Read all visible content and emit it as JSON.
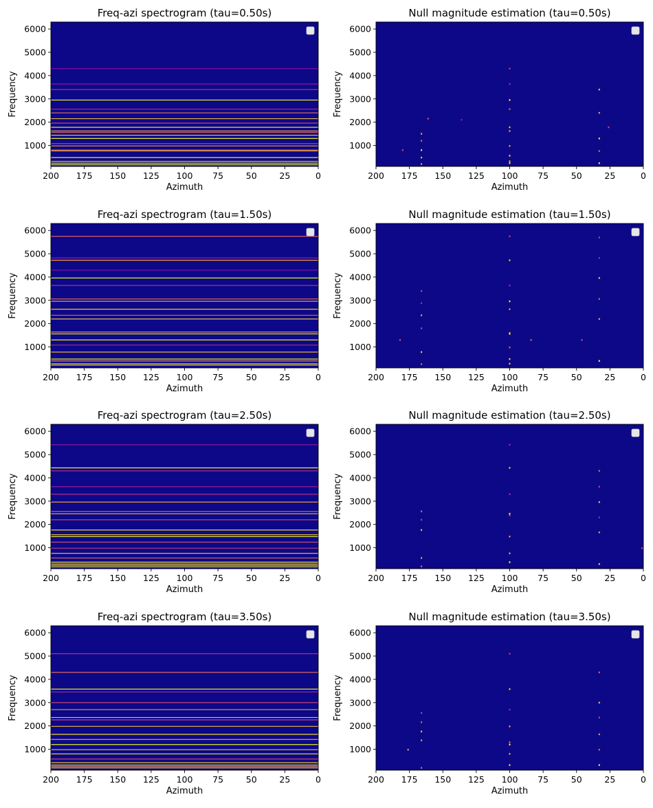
{
  "chart_data": [
    {
      "type": "heatmap",
      "title": "Freq-azi spectrogram (tau=0.50s)",
      "xlabel": "Azimuth",
      "ylabel": "Frequency",
      "xlim": [
        200,
        0
      ],
      "ylim": [
        100,
        6300
      ],
      "xticks": [
        200,
        175,
        150,
        125,
        100,
        75,
        50,
        25,
        0
      ],
      "yticks": [
        1000,
        2000,
        3000,
        4000,
        5000,
        6000
      ],
      "colormap": "plasma",
      "background": "#0d0887",
      "legend": "top-right",
      "legend_entries": [],
      "lines": [
        {
          "f": 4300,
          "c": "#8e0ca5"
        },
        {
          "f": 3640,
          "c": "#a01a9c"
        },
        {
          "f": 3400,
          "c": "#b52f8c"
        },
        {
          "f": 2950,
          "c": "#f0f921"
        },
        {
          "f": 2560,
          "c": "#b5348b"
        },
        {
          "f": 2400,
          "c": "#e36a5d"
        },
        {
          "f": 2150,
          "c": "#f7c13a"
        },
        {
          "f": 1960,
          "c": "#cc4778"
        },
        {
          "f": 1780,
          "c": "#f9e22c"
        },
        {
          "f": 1620,
          "c": "#fba238"
        },
        {
          "f": 1560,
          "c": "#e16462"
        },
        {
          "f": 1440,
          "c": "#fdca26"
        },
        {
          "f": 1300,
          "c": "#f0f921"
        },
        {
          "f": 1080,
          "c": "#d35171"
        },
        {
          "f": 980,
          "c": "#fca636"
        },
        {
          "f": 800,
          "c": "#fdb42f"
        },
        {
          "f": 760,
          "c": "#e56b5d"
        },
        {
          "f": 480,
          "c": "#f0f921"
        },
        {
          "f": 320,
          "c": "#fdc527"
        },
        {
          "f": 240,
          "c": "#f0f921"
        },
        {
          "f": 170,
          "c": "#f0f921"
        }
      ],
      "spots": []
    },
    {
      "type": "heatmap",
      "title": "Null magnitude estimation (tau=0.50s)",
      "xlabel": "Azimuth",
      "ylabel": "Frequency",
      "xlim": [
        200,
        0
      ],
      "ylim": [
        100,
        6300
      ],
      "xticks": [
        200,
        175,
        150,
        125,
        100,
        75,
        50,
        25,
        0
      ],
      "yticks": [
        1000,
        2000,
        3000,
        4000,
        5000,
        6000
      ],
      "colormap": "plasma",
      "background": "#0d0887",
      "legend": "top-right",
      "legend_entries": [],
      "lines": [],
      "spots": [
        {
          "az": 166,
          "f": 1500,
          "c": "#f9a43a"
        },
        {
          "az": 166,
          "f": 1200,
          "c": "#e56b5d"
        },
        {
          "az": 166,
          "f": 800,
          "c": "#f0f921"
        },
        {
          "az": 166,
          "f": 480,
          "c": "#fdca26"
        },
        {
          "az": 166,
          "f": 200,
          "c": "#f9a43a"
        },
        {
          "az": 180,
          "f": 800,
          "c": "#cc4778"
        },
        {
          "az": 161,
          "f": 2150,
          "c": "#d35171"
        },
        {
          "az": 136,
          "f": 2100,
          "c": "#9c179e"
        },
        {
          "az": 100,
          "f": 4300,
          "c": "#cc4778"
        },
        {
          "az": 100,
          "f": 3640,
          "c": "#b52f8c"
        },
        {
          "az": 100,
          "f": 2950,
          "c": "#f0f921"
        },
        {
          "az": 100,
          "f": 2560,
          "c": "#e36a5d"
        },
        {
          "az": 100,
          "f": 1780,
          "c": "#fdca26"
        },
        {
          "az": 100,
          "f": 1620,
          "c": "#fba238"
        },
        {
          "az": 100,
          "f": 980,
          "c": "#f9a43a"
        },
        {
          "az": 100,
          "f": 560,
          "c": "#f9e22c"
        },
        {
          "az": 100,
          "f": 320,
          "c": "#fdb42f"
        },
        {
          "az": 100,
          "f": 240,
          "c": "#f0f921"
        },
        {
          "az": 33,
          "f": 3400,
          "c": "#fdca26"
        },
        {
          "az": 33,
          "f": 2400,
          "c": "#f9a43a"
        },
        {
          "az": 33,
          "f": 1300,
          "c": "#f0f921"
        },
        {
          "az": 33,
          "f": 760,
          "c": "#e56b5d"
        },
        {
          "az": 33,
          "f": 240,
          "c": "#f0f921"
        },
        {
          "az": 26,
          "f": 1780,
          "c": "#cc4778"
        }
      ]
    },
    {
      "type": "heatmap",
      "title": "Freq-azi spectrogram (tau=1.50s)",
      "xlabel": "Azimuth",
      "ylabel": "Frequency",
      "xlim": [
        200,
        0
      ],
      "ylim": [
        100,
        6300
      ],
      "xticks": [
        200,
        175,
        150,
        125,
        100,
        75,
        50,
        25,
        0
      ],
      "yticks": [
        1000,
        2000,
        3000,
        4000,
        5000,
        6000
      ],
      "colormap": "plasma",
      "background": "#0d0887",
      "legend": "top-right",
      "legend_entries": [],
      "lines": [
        {
          "f": 5750,
          "c": "#e16462"
        },
        {
          "f": 4820,
          "c": "#a01a9c"
        },
        {
          "f": 4720,
          "c": "#f9a43a"
        },
        {
          "f": 4300,
          "c": "#8e0ca5"
        },
        {
          "f": 3960,
          "c": "#f0f921"
        },
        {
          "f": 3640,
          "c": "#b52f8c"
        },
        {
          "f": 3060,
          "c": "#e36a5d"
        },
        {
          "f": 2960,
          "c": "#f9a43a"
        },
        {
          "f": 2620,
          "c": "#fdca26"
        },
        {
          "f": 2360,
          "c": "#e56b5d"
        },
        {
          "f": 2200,
          "c": "#f7c13a"
        },
        {
          "f": 1640,
          "c": "#f9a43a"
        },
        {
          "f": 1560,
          "c": "#f0f921"
        },
        {
          "f": 1300,
          "c": "#f0f921"
        },
        {
          "f": 1080,
          "c": "#b52f8c"
        },
        {
          "f": 780,
          "c": "#fdb42f"
        },
        {
          "f": 480,
          "c": "#f0f921"
        },
        {
          "f": 400,
          "c": "#f9a43a"
        },
        {
          "f": 280,
          "c": "#fdca26"
        },
        {
          "f": 220,
          "c": "#f0f921"
        }
      ],
      "spots": []
    },
    {
      "type": "heatmap",
      "title": "Null magnitude estimation (tau=1.50s)",
      "xlabel": "Azimuth",
      "ylabel": "Frequency",
      "xlim": [
        200,
        0
      ],
      "ylim": [
        100,
        6300
      ],
      "xticks": [
        200,
        175,
        150,
        125,
        100,
        75,
        50,
        25,
        0
      ],
      "yticks": [
        1000,
        2000,
        3000,
        4000,
        5000,
        6000
      ],
      "colormap": "plasma",
      "background": "#0d0887",
      "legend": "top-right",
      "legend_entries": [],
      "lines": [],
      "spots": [
        {
          "az": 166,
          "f": 3400,
          "c": "#cc4778"
        },
        {
          "az": 166,
          "f": 2880,
          "c": "#b52f8c"
        },
        {
          "az": 166,
          "f": 2360,
          "c": "#f9a43a"
        },
        {
          "az": 166,
          "f": 1800,
          "c": "#cc4778"
        },
        {
          "az": 166,
          "f": 780,
          "c": "#fdca26"
        },
        {
          "az": 166,
          "f": 260,
          "c": "#e56b5d"
        },
        {
          "az": 182,
          "f": 1300,
          "c": "#d35171"
        },
        {
          "az": 100,
          "f": 5750,
          "c": "#cc4778"
        },
        {
          "az": 100,
          "f": 4720,
          "c": "#fdca26"
        },
        {
          "az": 100,
          "f": 3640,
          "c": "#b52f8c"
        },
        {
          "az": 100,
          "f": 2960,
          "c": "#f0f921"
        },
        {
          "az": 100,
          "f": 2620,
          "c": "#f9a43a"
        },
        {
          "az": 100,
          "f": 1600,
          "c": "#fdb42f"
        },
        {
          "az": 100,
          "f": 1560,
          "c": "#f0f921"
        },
        {
          "az": 100,
          "f": 980,
          "c": "#e56b5d"
        },
        {
          "az": 100,
          "f": 480,
          "c": "#f9e22c"
        },
        {
          "az": 100,
          "f": 280,
          "c": "#fdca26"
        },
        {
          "az": 84,
          "f": 1300,
          "c": "#e36a5d"
        },
        {
          "az": 46,
          "f": 1300,
          "c": "#cc4778"
        },
        {
          "az": 33,
          "f": 5700,
          "c": "#cc4778"
        },
        {
          "az": 33,
          "f": 4820,
          "c": "#b52f8c"
        },
        {
          "az": 33,
          "f": 3960,
          "c": "#fdca26"
        },
        {
          "az": 33,
          "f": 3060,
          "c": "#e56b5d"
        },
        {
          "az": 33,
          "f": 2200,
          "c": "#f9a43a"
        },
        {
          "az": 33,
          "f": 400,
          "c": "#f0f921"
        }
      ]
    },
    {
      "type": "heatmap",
      "title": "Freq-azi spectrogram (tau=2.50s)",
      "xlabel": "Azimuth",
      "ylabel": "Frequency",
      "xlim": [
        200,
        0
      ],
      "ylim": [
        100,
        6300
      ],
      "xticks": [
        200,
        175,
        150,
        125,
        100,
        75,
        50,
        25,
        0
      ],
      "yticks": [
        1000,
        2000,
        3000,
        4000,
        5000,
        6000
      ],
      "colormap": "plasma",
      "background": "#0d0887",
      "legend": "top-right",
      "legend_entries": [],
      "lines": [
        {
          "f": 5420,
          "c": "#a01a9c"
        },
        {
          "f": 4430,
          "c": "#f0f921"
        },
        {
          "f": 4300,
          "c": "#b52f8c"
        },
        {
          "f": 3620,
          "c": "#a01a9c"
        },
        {
          "f": 3300,
          "c": "#b52f8c"
        },
        {
          "f": 2960,
          "c": "#f9a43a"
        },
        {
          "f": 2560,
          "c": "#e36a5d"
        },
        {
          "f": 2460,
          "c": "#fdca26"
        },
        {
          "f": 2200,
          "c": "#cc4778"
        },
        {
          "f": 1760,
          "c": "#f9e22c"
        },
        {
          "f": 1560,
          "c": "#fdca26"
        },
        {
          "f": 1480,
          "c": "#f0f921"
        },
        {
          "f": 1240,
          "c": "#d35171"
        },
        {
          "f": 980,
          "c": "#cc4778"
        },
        {
          "f": 760,
          "c": "#fdb42f"
        },
        {
          "f": 560,
          "c": "#e56b5d"
        },
        {
          "f": 380,
          "c": "#f0f921"
        },
        {
          "f": 300,
          "c": "#fdca26"
        },
        {
          "f": 240,
          "c": "#f9a43a"
        },
        {
          "f": 180,
          "c": "#f0f921"
        }
      ],
      "spots": []
    },
    {
      "type": "heatmap",
      "title": "Null magnitude estimation (tau=2.50s)",
      "xlabel": "Azimuth",
      "ylabel": "Frequency",
      "xlim": [
        200,
        0
      ],
      "ylim": [
        100,
        6300
      ],
      "xticks": [
        200,
        175,
        150,
        125,
        100,
        75,
        50,
        25,
        0
      ],
      "yticks": [
        1000,
        2000,
        3000,
        4000,
        5000,
        6000
      ],
      "colormap": "plasma",
      "background": "#0d0887",
      "legend": "top-right",
      "legend_entries": [],
      "lines": [],
      "spots": [
        {
          "az": 166,
          "f": 2560,
          "c": "#e36a5d"
        },
        {
          "az": 166,
          "f": 2200,
          "c": "#cc4778"
        },
        {
          "az": 166,
          "f": 1760,
          "c": "#fdca26"
        },
        {
          "az": 166,
          "f": 560,
          "c": "#f9a43a"
        },
        {
          "az": 166,
          "f": 200,
          "c": "#e56b5d"
        },
        {
          "az": 100,
          "f": 5420,
          "c": "#b52f8c"
        },
        {
          "az": 100,
          "f": 4430,
          "c": "#fdca26"
        },
        {
          "az": 100,
          "f": 3300,
          "c": "#b52f8c"
        },
        {
          "az": 100,
          "f": 2460,
          "c": "#f0f921"
        },
        {
          "az": 100,
          "f": 2400,
          "c": "#e56b5d"
        },
        {
          "az": 100,
          "f": 1480,
          "c": "#f9a43a"
        },
        {
          "az": 100,
          "f": 760,
          "c": "#fdb42f"
        },
        {
          "az": 100,
          "f": 380,
          "c": "#f0f921"
        },
        {
          "az": 33,
          "f": 4300,
          "c": "#e56b5d"
        },
        {
          "az": 33,
          "f": 3620,
          "c": "#cc4778"
        },
        {
          "az": 33,
          "f": 2960,
          "c": "#fdca26"
        },
        {
          "az": 33,
          "f": 2300,
          "c": "#b52f8c"
        },
        {
          "az": 33,
          "f": 1660,
          "c": "#f9a43a"
        },
        {
          "az": 33,
          "f": 300,
          "c": "#fdca26"
        },
        {
          "az": 1,
          "f": 980,
          "c": "#cc4778"
        }
      ]
    },
    {
      "type": "heatmap",
      "title": "Freq-azi spectrogram (tau=3.50s)",
      "xlabel": "Azimuth",
      "ylabel": "Frequency",
      "xlim": [
        200,
        0
      ],
      "ylim": [
        100,
        6300
      ],
      "xticks": [
        200,
        175,
        150,
        125,
        100,
        75,
        50,
        25,
        0
      ],
      "yticks": [
        1000,
        2000,
        3000,
        4000,
        5000,
        6000
      ],
      "colormap": "plasma",
      "background": "#0d0887",
      "legend": "top-right",
      "legend_entries": [],
      "lines": [
        {
          "f": 5100,
          "c": "#b52f8c"
        },
        {
          "f": 4300,
          "c": "#e36a5d"
        },
        {
          "f": 3580,
          "c": "#f0f921"
        },
        {
          "f": 3460,
          "c": "#b52f8c"
        },
        {
          "f": 3000,
          "c": "#cc4778"
        },
        {
          "f": 2700,
          "c": "#f9a43a"
        },
        {
          "f": 2360,
          "c": "#fdca26"
        },
        {
          "f": 2260,
          "c": "#cc4778"
        },
        {
          "f": 1980,
          "c": "#f7c13a"
        },
        {
          "f": 1640,
          "c": "#f9e22c"
        },
        {
          "f": 1420,
          "c": "#fdb42f"
        },
        {
          "f": 1200,
          "c": "#f0f921"
        },
        {
          "f": 980,
          "c": "#fdca26"
        },
        {
          "f": 800,
          "c": "#f0f921"
        },
        {
          "f": 580,
          "c": "#cc4778"
        },
        {
          "f": 420,
          "c": "#fdca26"
        },
        {
          "f": 320,
          "c": "#f0f921"
        },
        {
          "f": 260,
          "c": "#f9a43a"
        },
        {
          "f": 200,
          "c": "#fdca26"
        }
      ],
      "spots": []
    },
    {
      "type": "heatmap",
      "title": "Null magnitude estimation (tau=3.50s)",
      "xlabel": "Azimuth",
      "ylabel": "Frequency",
      "xlim": [
        200,
        0
      ],
      "ylim": [
        100,
        6300
      ],
      "xticks": [
        200,
        175,
        150,
        125,
        100,
        75,
        50,
        25,
        0
      ],
      "yticks": [
        1000,
        2000,
        3000,
        4000,
        5000,
        6000
      ],
      "colormap": "plasma",
      "background": "#0d0887",
      "legend": "top-right",
      "legend_entries": [],
      "lines": [],
      "spots": [
        {
          "az": 166,
          "f": 2560,
          "c": "#cc4778"
        },
        {
          "az": 166,
          "f": 2160,
          "c": "#e36a5d"
        },
        {
          "az": 166,
          "f": 1760,
          "c": "#fdca26"
        },
        {
          "az": 166,
          "f": 1380,
          "c": "#f9a43a"
        },
        {
          "az": 166,
          "f": 200,
          "c": "#e56b5d"
        },
        {
          "az": 176,
          "f": 980,
          "c": "#f9a43a"
        },
        {
          "az": 100,
          "f": 5100,
          "c": "#cc4778"
        },
        {
          "az": 100,
          "f": 3580,
          "c": "#fdca26"
        },
        {
          "az": 100,
          "f": 2700,
          "c": "#b52f8c"
        },
        {
          "az": 100,
          "f": 1980,
          "c": "#f9a43a"
        },
        {
          "az": 100,
          "f": 1300,
          "c": "#e56b5d"
        },
        {
          "az": 100,
          "f": 1200,
          "c": "#f0f921"
        },
        {
          "az": 100,
          "f": 800,
          "c": "#fdb42f"
        },
        {
          "az": 100,
          "f": 320,
          "c": "#f0f921"
        },
        {
          "az": 33,
          "f": 4300,
          "c": "#e56b5d"
        },
        {
          "az": 33,
          "f": 3000,
          "c": "#fdca26"
        },
        {
          "az": 33,
          "f": 2360,
          "c": "#cc4778"
        },
        {
          "az": 33,
          "f": 1640,
          "c": "#f9a43a"
        },
        {
          "az": 33,
          "f": 980,
          "c": "#e56b5d"
        },
        {
          "az": 33,
          "f": 320,
          "c": "#f0f921"
        }
      ]
    }
  ]
}
